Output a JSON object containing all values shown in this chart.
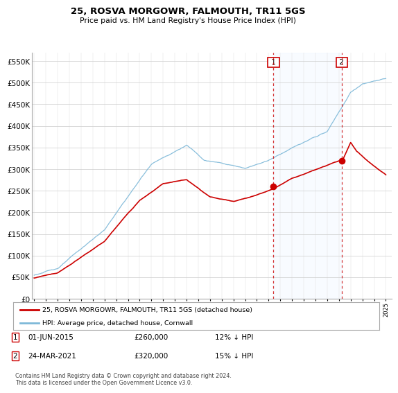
{
  "title": "25, ROSVA MORGOWR, FALMOUTH, TR11 5GS",
  "subtitle": "Price paid vs. HM Land Registry's House Price Index (HPI)",
  "ylabel_ticks": [
    "£0",
    "£50K",
    "£100K",
    "£150K",
    "£200K",
    "£250K",
    "£300K",
    "£350K",
    "£400K",
    "£450K",
    "£500K",
    "£550K"
  ],
  "ytick_values": [
    0,
    50000,
    100000,
    150000,
    200000,
    250000,
    300000,
    350000,
    400000,
    450000,
    500000,
    550000
  ],
  "ylim": [
    0,
    570000
  ],
  "legend_line1": "25, ROSVA MORGOWR, FALMOUTH, TR11 5GS (detached house)",
  "legend_line2": "HPI: Average price, detached house, Cornwall",
  "sale1_label": "1",
  "sale1_date": "01-JUN-2015",
  "sale1_price": "£260,000",
  "sale1_note": "12% ↓ HPI",
  "sale2_label": "2",
  "sale2_date": "24-MAR-2021",
  "sale2_price": "£320,000",
  "sale2_note": "15% ↓ HPI",
  "footer": "Contains HM Land Registry data © Crown copyright and database right 2024.\nThis data is licensed under the Open Government Licence v3.0.",
  "hpi_color": "#7db8d8",
  "price_color": "#cc0000",
  "sale1_x": 2015.42,
  "sale1_y": 260000,
  "sale2_x": 2021.23,
  "sale2_y": 320000,
  "xlim_left": 1994.8,
  "xlim_right": 2025.5,
  "background_color": "#ffffff",
  "plot_bg": "#ffffff",
  "shade_color": "#ddeeff"
}
